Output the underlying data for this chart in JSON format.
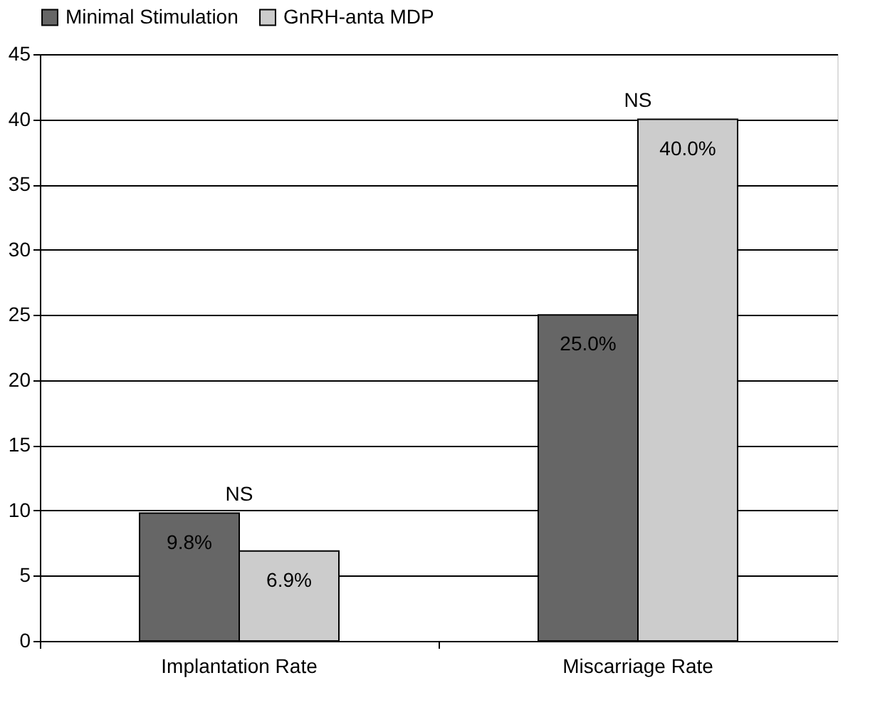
{
  "chart_data": {
    "type": "bar",
    "categories": [
      "Implantation Rate",
      "Miscarriage Rate"
    ],
    "series": [
      {
        "name": "Minimal Stimulation",
        "color": "#666666",
        "values": [
          9.8,
          25.0
        ],
        "value_labels": [
          "9.8%",
          "25.0%"
        ]
      },
      {
        "name": "GnRH-anta MDP",
        "color": "#cccccc",
        "values": [
          6.9,
          40.0
        ],
        "value_labels": [
          "6.9%",
          "40.0%"
        ]
      }
    ],
    "ylim": [
      0,
      45
    ],
    "yticks": [
      0,
      5,
      10,
      15,
      20,
      25,
      30,
      35,
      40,
      45
    ],
    "grid": "y",
    "legend": "top",
    "annotations": [
      {
        "text": "NS",
        "x": "Implantation Rate",
        "y": 9.8
      },
      {
        "text": "NS",
        "x": "Miscarriage Rate",
        "y": 40.0
      }
    ]
  }
}
